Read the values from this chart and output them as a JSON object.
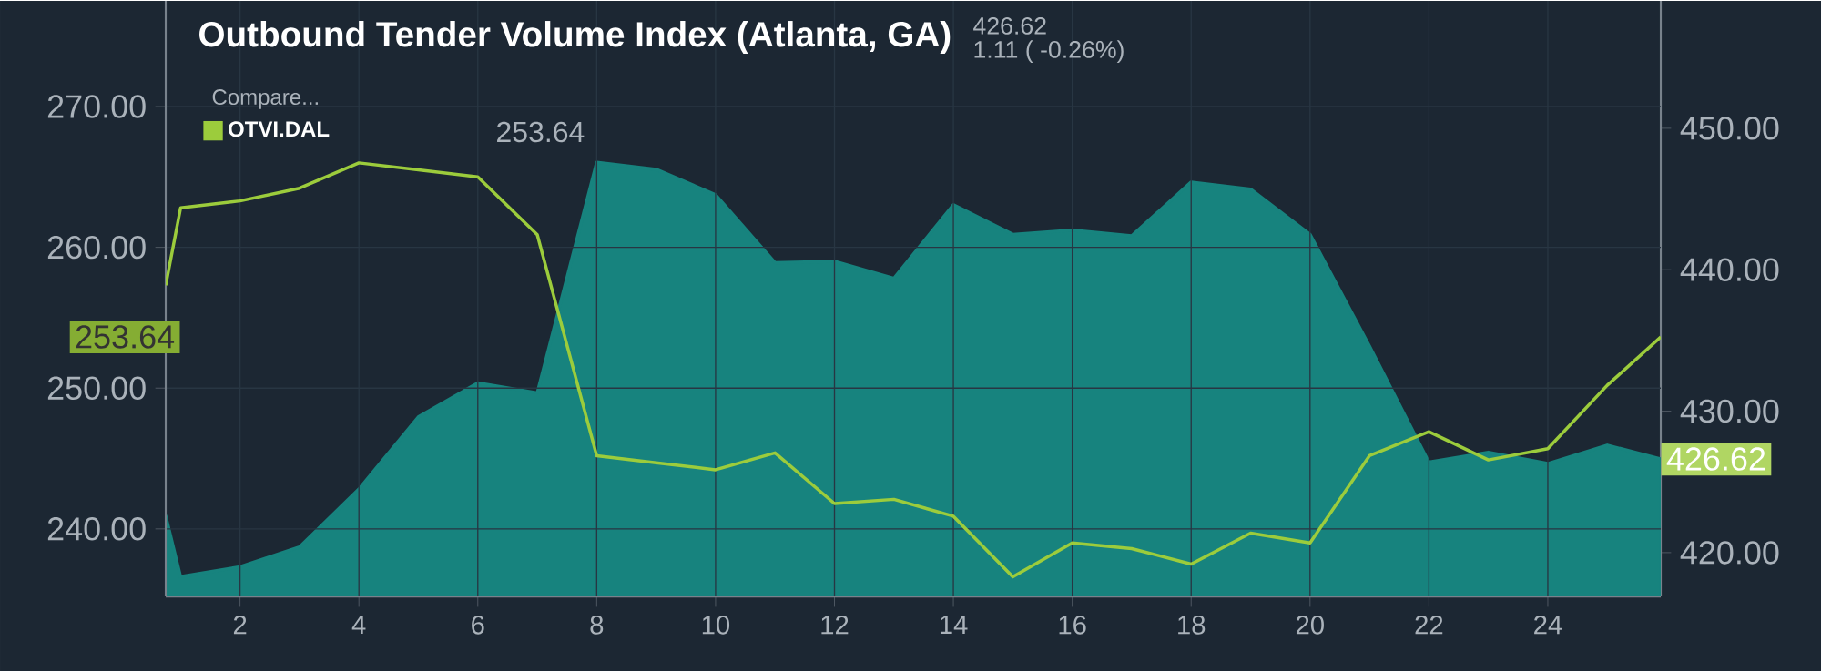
{
  "chart_data": {
    "type": "line",
    "title": "Outbound Tender Volume Index (Atlanta, GA)",
    "annotations": [
      "426.62",
      "1.11 ( -0.26%)",
      "Compare...",
      "253.64",
      "253.64",
      "426.62"
    ],
    "x": [
      0.75,
      1,
      2,
      3,
      4,
      5,
      6,
      7,
      8,
      9,
      10,
      11,
      12,
      13,
      14,
      15,
      16,
      17,
      18,
      19,
      20,
      21,
      22,
      23,
      24,
      25,
      25.9
    ],
    "series": [
      {
        "name": "OTVI.DAL",
        "axis": "y",
        "color": "#9ccc3c",
        "values": [
          257.3,
          262.8,
          263.3,
          264.2,
          266.0,
          265.5,
          265.0,
          260.9,
          245.2,
          244.7,
          244.2,
          245.4,
          241.8,
          242.1,
          240.9,
          236.6,
          239.0,
          238.6,
          237.5,
          239.7,
          239.0,
          245.2,
          246.9,
          244.9,
          245.7,
          250.2,
          253.64
        ]
      },
      {
        "type": "area",
        "axis": "y2",
        "color": "#17837e",
        "values": [
          422.6,
          418.3,
          419.0,
          420.4,
          424.5,
          429.6,
          432.0,
          431.3,
          447.6,
          447.1,
          445.3,
          440.5,
          440.6,
          439.4,
          444.6,
          442.5,
          442.8,
          442.4,
          446.2,
          445.7,
          442.5,
          434.6,
          426.4,
          427.1,
          426.3,
          427.6,
          426.62
        ]
      }
    ],
    "xlim": [
      0.75,
      25.9
    ],
    "xticks": [
      2,
      4,
      6,
      8,
      10,
      12,
      14,
      16,
      18,
      20,
      22,
      24
    ],
    "ylim": [
      235.2,
      277.5
    ],
    "yticks": [
      {
        "value": 240,
        "label": "240.00"
      },
      {
        "value": 250,
        "label": "250.00"
      },
      {
        "value": 260,
        "label": "260.00"
      },
      {
        "value": 270,
        "label": "270.00"
      }
    ],
    "y2lim": [
      416.9,
      459
    ],
    "y2ticks": [
      {
        "value": 420,
        "label": "420.00"
      },
      {
        "value": 430,
        "label": "430.00"
      },
      {
        "value": 440,
        "label": "440.00"
      },
      {
        "value": 450,
        "label": "450.00"
      }
    ],
    "grid": true,
    "legend": "top left"
  }
}
